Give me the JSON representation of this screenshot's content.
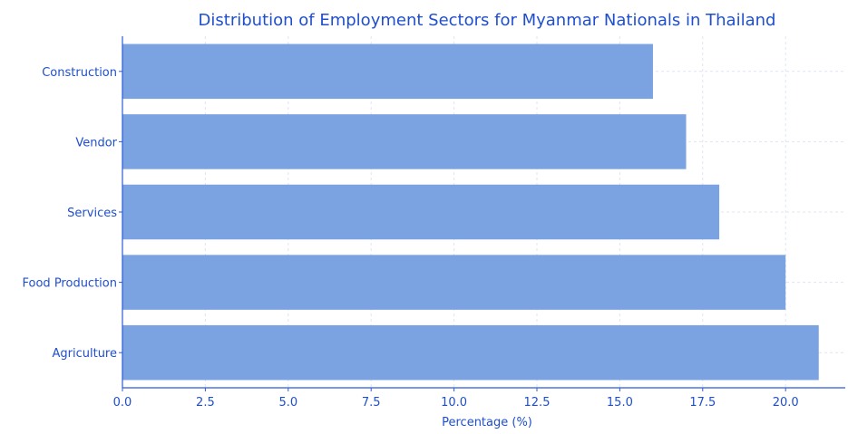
{
  "chart_data": {
    "type": "bar",
    "orientation": "horizontal",
    "title": "Distribution of Employment Sectors for Myanmar Nationals in Thailand",
    "xlabel": "Percentage (%)",
    "ylabel": "",
    "categories": [
      "Construction",
      "Vendor",
      "Services",
      "Food Production",
      "Agriculture"
    ],
    "values": [
      16,
      17,
      18,
      20,
      21
    ],
    "xlim": [
      0,
      21.8
    ],
    "xticks": [
      "0.0",
      "2.5",
      "5.0",
      "7.5",
      "10.0",
      "12.5",
      "15.0",
      "17.5",
      "20.0"
    ],
    "grid": true,
    "legend": "none",
    "colors": {
      "bar": "#7ba3e1",
      "text": "#1f4fcc",
      "axis": "#2a5bd7",
      "grid": "#dde5f3"
    }
  }
}
